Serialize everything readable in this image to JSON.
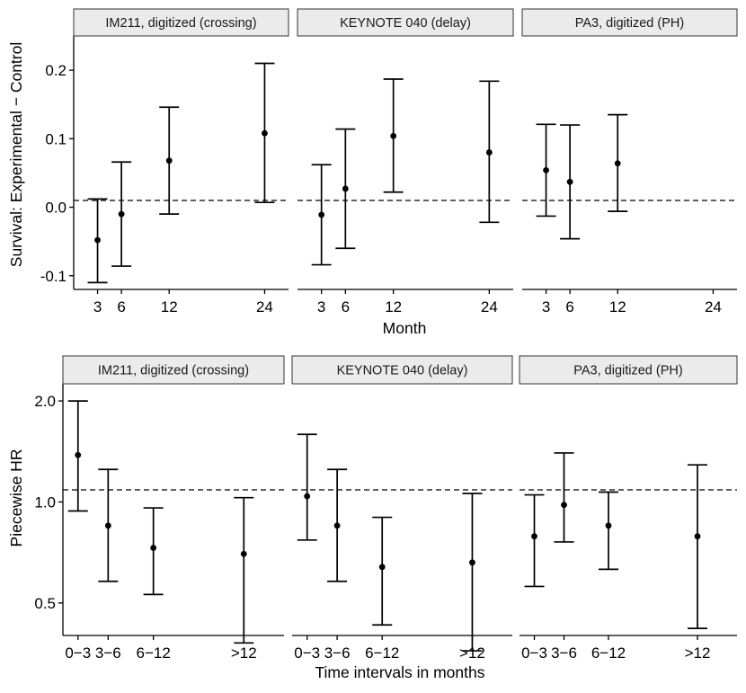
{
  "chart_data": [
    {
      "type": "errorbar",
      "id": "top",
      "ylabel": "Survival: Experimental − Control",
      "xlabel": "Month",
      "xlim": [
        0,
        27
      ],
      "ylim": [
        -0.12,
        0.25
      ],
      "xticks": [
        3,
        6,
        12,
        24
      ],
      "xtick_labels": [
        "3",
        "6",
        "12",
        "24"
      ],
      "yticks": [
        -0.1,
        0.0,
        0.1,
        0.2
      ],
      "ytick_labels": [
        "-0.1",
        "0.0",
        "0.1",
        "0.2"
      ],
      "reference_line": 0.0,
      "panels": [
        {
          "title": "IM211, digitized (crossing)",
          "points": [
            {
              "x": 3,
              "est": -0.048,
              "lo": -0.11,
              "hi": 0.012
            },
            {
              "x": 6,
              "est": -0.01,
              "lo": -0.086,
              "hi": 0.066
            },
            {
              "x": 12,
              "est": 0.068,
              "lo": -0.01,
              "hi": 0.146
            },
            {
              "x": 24,
              "est": 0.108,
              "lo": 0.007,
              "hi": 0.21
            }
          ]
        },
        {
          "title": "KEYNOTE 040 (delay)",
          "points": [
            {
              "x": 3,
              "est": -0.011,
              "lo": -0.084,
              "hi": 0.062
            },
            {
              "x": 6,
              "est": 0.027,
              "lo": -0.06,
              "hi": 0.114
            },
            {
              "x": 12,
              "est": 0.104,
              "lo": 0.022,
              "hi": 0.187
            },
            {
              "x": 24,
              "est": 0.08,
              "lo": -0.022,
              "hi": 0.184
            }
          ]
        },
        {
          "title": "PA3, digitized (PH)",
          "points": [
            {
              "x": 3,
              "est": 0.054,
              "lo": -0.013,
              "hi": 0.121
            },
            {
              "x": 6,
              "est": 0.037,
              "lo": -0.046,
              "hi": 0.12
            },
            {
              "x": 12,
              "est": 0.064,
              "lo": -0.006,
              "hi": 0.135
            }
          ]
        }
      ]
    },
    {
      "type": "errorbar",
      "id": "bottom",
      "ylabel": "Piecewise HR",
      "xlabel": "Time intervals in months",
      "scale": "log",
      "categories": [
        "0−3",
        "3−6",
        "6−12",
        ">12"
      ],
      "category_positions": [
        1.5,
        4.5,
        9,
        18
      ],
      "xlim": [
        0,
        22
      ],
      "ylim": [
        0.4,
        2.25
      ],
      "yticks": [
        0.5,
        1.0,
        2.0
      ],
      "ytick_labels": [
        "0.5",
        "1.0",
        "2.0"
      ],
      "reference_line": 1.0,
      "panels": [
        {
          "title": "IM211, digitized (crossing)",
          "points": [
            {
              "category": "0−3",
              "est": 1.38,
              "lo": 0.94,
              "hi": 2.0
            },
            {
              "category": "3−6",
              "est": 0.85,
              "lo": 0.58,
              "hi": 1.25
            },
            {
              "category": "6−12",
              "est": 0.73,
              "lo": 0.53,
              "hi": 0.96
            },
            {
              "category": ">12",
              "est": 0.7,
              "lo": 0.38,
              "hi": 1.03
            }
          ]
        },
        {
          "title": "KEYNOTE 040 (delay)",
          "points": [
            {
              "category": "0−3",
              "est": 1.04,
              "lo": 0.77,
              "hi": 1.59
            },
            {
              "category": "3−6",
              "est": 0.85,
              "lo": 0.58,
              "hi": 1.25
            },
            {
              "category": "6−12",
              "est": 0.64,
              "lo": 0.43,
              "hi": 0.9
            },
            {
              "category": ">12",
              "est": 0.66,
              "lo": 0.36,
              "hi": 1.06
            }
          ]
        },
        {
          "title": "PA3, digitized (PH)",
          "points": [
            {
              "category": "0−3",
              "est": 0.79,
              "lo": 0.56,
              "hi": 1.05
            },
            {
              "category": "3−6",
              "est": 0.98,
              "lo": 0.76,
              "hi": 1.4
            },
            {
              "category": "6−12",
              "est": 0.85,
              "lo": 0.63,
              "hi": 1.07
            },
            {
              "category": ">12",
              "est": 0.79,
              "lo": 0.42,
              "hi": 1.29
            }
          ]
        }
      ]
    }
  ]
}
